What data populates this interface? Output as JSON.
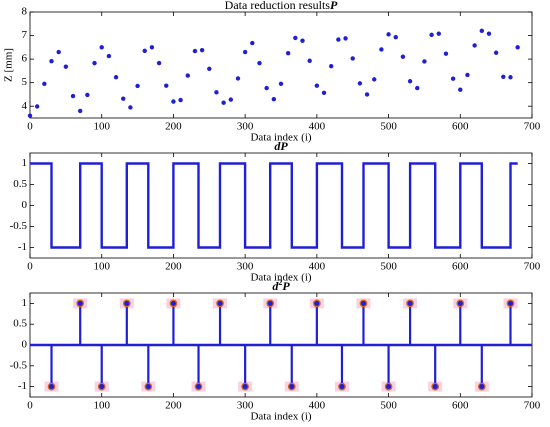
{
  "chart_data": [
    {
      "type": "scatter",
      "title": "Data reduction results",
      "title_symbol": "P",
      "x_label": "Data index (i)",
      "y_label": "Z [mm]",
      "color": "#1f1fd6",
      "x": [
        0,
        10,
        20,
        30,
        40,
        50,
        60,
        70,
        80,
        90,
        100,
        110,
        120,
        130,
        140,
        150,
        160,
        170,
        180,
        190,
        200,
        210,
        220,
        230,
        240,
        250,
        260,
        270,
        280,
        290,
        300,
        310,
        320,
        330,
        340,
        350,
        360,
        370,
        380,
        390,
        400,
        410,
        420,
        430,
        440,
        450,
        460,
        470,
        480,
        490,
        500,
        510,
        520,
        530,
        540,
        550,
        560,
        570,
        580,
        590,
        600,
        610,
        620,
        630,
        640,
        650,
        660,
        670,
        680
      ],
      "values": [
        3.6,
        3.99,
        4.95,
        5.91,
        6.3,
        5.68,
        4.43,
        3.8,
        4.48,
        5.83,
        6.5,
        6.13,
        5.23,
        4.32,
        3.95,
        4.86,
        6.35,
        6.5,
        5.83,
        4.87,
        4.2,
        4.26,
        5.3,
        6.34,
        6.38,
        5.59,
        4.59,
        4.15,
        4.28,
        5.18,
        6.3,
        6.68,
        5.83,
        4.77,
        4.3,
        4.95,
        6.25,
        6.9,
        6.78,
        5.93,
        4.87,
        4.57,
        5.7,
        6.83,
        6.88,
        6.03,
        4.97,
        4.5,
        5.14,
        6.41,
        7.05,
        6.93,
        6.1,
        5.06,
        4.77,
        5.9,
        7.03,
        7.08,
        6.23,
        5.17,
        4.7,
        5.33,
        6.58,
        7.2,
        7.08,
        6.27,
        5.25,
        5.23,
        6.5
      ],
      "xlim": [
        0,
        700
      ],
      "xticks": [
        0,
        100,
        200,
        300,
        400,
        500,
        600,
        700
      ],
      "ylim": [
        3.5,
        8
      ],
      "yticks": [
        4,
        5,
        6,
        7,
        8
      ]
    },
    {
      "type": "line",
      "title": "d",
      "title_symbol": "P",
      "x_label": "Data index (i)",
      "color": "#1f1fd6",
      "x": [
        0,
        30,
        30,
        70,
        70,
        100,
        100,
        135,
        135,
        165,
        165,
        200,
        200,
        235,
        235,
        265,
        265,
        300,
        300,
        335,
        335,
        365,
        365,
        400,
        400,
        435,
        435,
        465,
        465,
        500,
        500,
        530,
        530,
        565,
        565,
        600,
        600,
        630,
        630,
        670,
        670,
        680
      ],
      "values": [
        1,
        1,
        -1,
        -1,
        1,
        1,
        -1,
        -1,
        1,
        1,
        -1,
        -1,
        1,
        1,
        -1,
        -1,
        1,
        1,
        -1,
        -1,
        1,
        1,
        -1,
        -1,
        1,
        1,
        -1,
        -1,
        1,
        1,
        -1,
        -1,
        1,
        1,
        -1,
        -1,
        1,
        1,
        -1,
        -1,
        1,
        1
      ],
      "xlim": [
        0,
        700
      ],
      "xticks": [
        0,
        100,
        200,
        300,
        400,
        500,
        600,
        700
      ],
      "ylim": [
        -1.25,
        1.25
      ],
      "yticks": [
        -1,
        -0.5,
        0,
        0.5,
        1
      ]
    },
    {
      "type": "stem",
      "title": "d",
      "title_superscript": "2",
      "title_symbol": "P",
      "x_label": "Data index (i)",
      "color": "#1f1fd6",
      "marker_color": "#d2691e",
      "x": [
        30,
        70,
        100,
        135,
        165,
        200,
        235,
        265,
        300,
        335,
        365,
        400,
        435,
        465,
        500,
        530,
        565,
        600,
        630,
        670
      ],
      "values": [
        -1,
        1,
        -1,
        1,
        -1,
        1,
        -1,
        1,
        -1,
        1,
        -1,
        1,
        -1,
        1,
        -1,
        1,
        -1,
        1,
        -1,
        1
      ],
      "xlim": [
        0,
        700
      ],
      "xticks": [
        0,
        100,
        200,
        300,
        400,
        500,
        600,
        700
      ],
      "ylim": [
        -1.25,
        1.25
      ],
      "yticks": [
        -1,
        -0.5,
        0,
        0.5,
        1
      ]
    }
  ]
}
